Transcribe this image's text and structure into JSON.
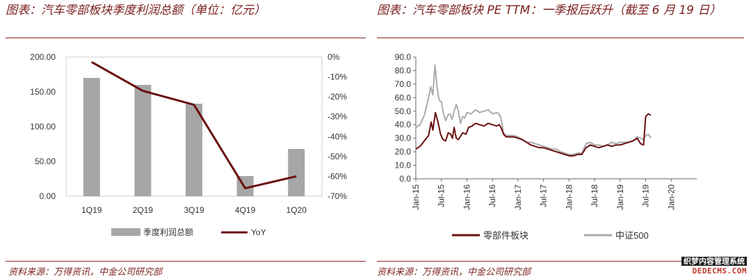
{
  "left": {
    "title": "图表：汽车零部板块季度利润总额（单位：亿元）",
    "source": "资料来源：万得资讯，中金公司研究部",
    "legend": {
      "bar": "季度利润总额",
      "line": "YoY"
    }
  },
  "right": {
    "title": "图表：汽车零部板块 PE TTM：一季报后跃升（截至 6 月 19 日）",
    "source": "资料来源：万得资讯，中金公司研究部",
    "legend": {
      "s1": "零部件板块",
      "s2": "中证500"
    }
  },
  "watermark": {
    "line1": "织梦内容管理系统",
    "line2": "DEDECMS.COM"
  },
  "colors": {
    "accent": "#7b1f1f",
    "bar": "#a6a6a6",
    "line1": "#6b0f0f",
    "line2": "#aaaaaa"
  },
  "chart_data": [
    {
      "type": "bar",
      "title": "汽车零部板块季度利润总额（单位：亿元）",
      "categories": [
        "1Q19",
        "2Q19",
        "3Q19",
        "4Q19",
        "1Q20"
      ],
      "series": [
        {
          "name": "季度利润总额",
          "axis": "left",
          "type": "bar",
          "values": [
            170,
            160,
            133,
            29,
            68
          ]
        },
        {
          "name": "YoY",
          "axis": "right",
          "type": "line",
          "values": [
            -2.5,
            -17,
            -24,
            -66,
            -60
          ]
        }
      ],
      "ylim": [
        0,
        200
      ],
      "yticks": [
        "0.00",
        "50.00",
        "100.00",
        "150.00",
        "200.00"
      ],
      "ylim_right": [
        -70,
        0
      ],
      "yticks_right": [
        "0%",
        "-10%",
        "-20%",
        "-30%",
        "-40%",
        "-50%",
        "-60%",
        "-70%"
      ],
      "legend": "bottom"
    },
    {
      "type": "line",
      "title": "汽车零部板块 PE TTM：一季报后跃升（截至 6 月 19 日）",
      "x": [
        "Jan-15",
        "Jul-15",
        "Jan-16",
        "Jul-16",
        "Jan-17",
        "Jul-17",
        "Jan-18",
        "Jul-18",
        "Jan-19",
        "Jul-19",
        "Jan-20"
      ],
      "yticks": [
        "0.0",
        "10.0",
        "20.0",
        "30.0",
        "40.0",
        "50.0",
        "60.0",
        "70.0",
        "80.0",
        "90.0"
      ],
      "ylim": [
        0,
        90
      ],
      "x_range_months": [
        0,
        66
      ],
      "series": [
        {
          "name": "零部件板块",
          "points": [
            [
              0,
              22
            ],
            [
              1,
              24
            ],
            [
              2,
              28
            ],
            [
              3,
              32
            ],
            [
              3.6,
              42
            ],
            [
              4,
              36
            ],
            [
              4.6,
              49
            ],
            [
              5.2,
              42
            ],
            [
              5.8,
              33
            ],
            [
              6.4,
              29
            ],
            [
              7,
              28
            ],
            [
              7.6,
              34
            ],
            [
              8.2,
              33
            ],
            [
              8.6,
              30
            ],
            [
              9,
              38
            ],
            [
              9.5,
              30
            ],
            [
              10,
              29
            ],
            [
              11,
              34
            ],
            [
              11.8,
              33
            ],
            [
              12.4,
              38
            ],
            [
              13.2,
              39
            ],
            [
              14,
              41
            ],
            [
              15,
              40
            ],
            [
              16,
              39
            ],
            [
              17,
              41
            ],
            [
              18,
              40
            ],
            [
              19,
              39
            ],
            [
              19.6,
              40
            ],
            [
              20,
              38
            ],
            [
              20.6,
              33
            ],
            [
              21.2,
              31
            ],
            [
              22,
              31
            ],
            [
              23,
              31
            ],
            [
              24,
              30
            ],
            [
              25,
              29
            ],
            [
              26,
              27
            ],
            [
              27,
              25
            ],
            [
              28,
              24
            ],
            [
              29,
              23
            ],
            [
              30,
              23
            ],
            [
              31,
              22
            ],
            [
              32,
              21
            ],
            [
              33,
              20
            ],
            [
              34,
              19
            ],
            [
              35,
              18
            ],
            [
              36,
              17
            ],
            [
              37,
              17
            ],
            [
              38,
              18
            ],
            [
              39,
              18
            ],
            [
              40,
              23
            ],
            [
              41,
              25
            ],
            [
              42,
              24
            ],
            [
              43,
              23
            ],
            [
              44,
              24
            ],
            [
              45,
              25
            ],
            [
              46,
              24
            ],
            [
              47,
              25
            ],
            [
              48,
              25
            ],
            [
              49,
              26
            ],
            [
              50,
              27
            ],
            [
              51,
              28
            ],
            [
              52,
              30
            ],
            [
              52.8,
              26
            ],
            [
              53.5,
              25
            ],
            [
              54,
              46
            ],
            [
              54.6,
              48
            ],
            [
              55.2,
              47
            ]
          ]
        },
        {
          "name": "中证500",
          "points": [
            [
              0,
              38
            ],
            [
              1,
              40
            ],
            [
              2,
              47
            ],
            [
              3,
              60
            ],
            [
              3.5,
              68
            ],
            [
              4,
              62
            ],
            [
              4.5,
              84
            ],
            [
              5,
              67
            ],
            [
              5.5,
              58
            ],
            [
              6,
              57
            ],
            [
              6.5,
              48
            ],
            [
              7,
              43
            ],
            [
              7.5,
              47
            ],
            [
              8,
              48
            ],
            [
              8.5,
              44
            ],
            [
              9,
              50
            ],
            [
              9.5,
              55
            ],
            [
              10,
              50
            ],
            [
              10.5,
              41
            ],
            [
              11,
              46
            ],
            [
              11.5,
              45
            ],
            [
              12,
              49
            ],
            [
              13,
              48
            ],
            [
              14,
              51
            ],
            [
              15,
              49
            ],
            [
              16,
              50
            ],
            [
              17,
              51
            ],
            [
              18,
              48
            ],
            [
              19,
              49
            ],
            [
              19.5,
              48
            ],
            [
              20,
              45
            ],
            [
              20.6,
              34
            ],
            [
              21.2,
              32
            ],
            [
              22,
              32
            ],
            [
              23,
              32
            ],
            [
              24,
              31
            ],
            [
              25,
              29
            ],
            [
              26,
              27
            ],
            [
              27,
              27
            ],
            [
              28,
              26
            ],
            [
              29,
              25
            ],
            [
              30,
              24
            ],
            [
              31,
              23
            ],
            [
              32,
              22
            ],
            [
              33,
              22
            ],
            [
              34,
              20
            ],
            [
              35,
              19
            ],
            [
              36,
              18
            ],
            [
              37,
              18
            ],
            [
              38,
              19
            ],
            [
              39,
              19
            ],
            [
              40,
              26
            ],
            [
              41,
              27
            ],
            [
              42,
              25
            ],
            [
              43,
              25
            ],
            [
              44,
              24
            ],
            [
              45,
              25
            ],
            [
              46,
              27
            ],
            [
              47,
              26
            ],
            [
              48,
              27
            ],
            [
              49,
              27
            ],
            [
              50,
              27
            ],
            [
              51,
              28
            ],
            [
              52,
              31
            ],
            [
              52.8,
              30
            ],
            [
              53.5,
              29
            ],
            [
              54,
              32
            ],
            [
              54.6,
              33
            ],
            [
              55.2,
              30
            ]
          ]
        }
      ],
      "legend": "bottom"
    }
  ]
}
